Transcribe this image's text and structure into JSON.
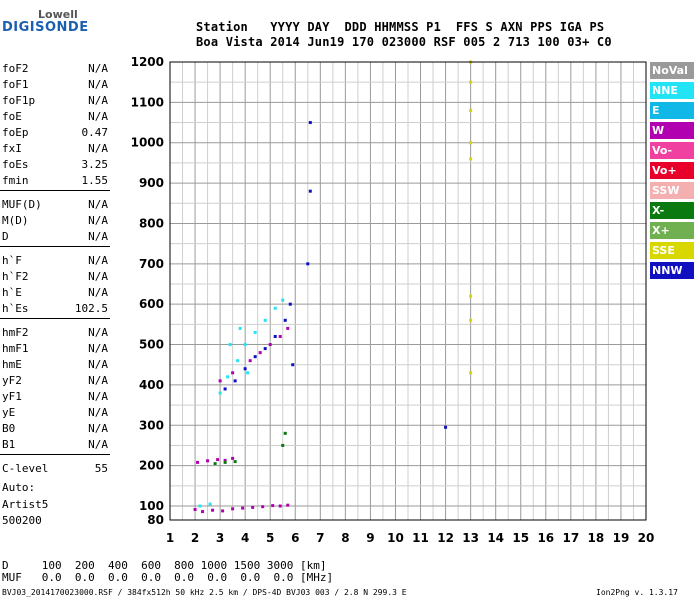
{
  "logo": {
    "line1": "Lowell",
    "line2": "DIGISONDE"
  },
  "header": {
    "line1": "Station   YYYY DAY  DDD HHMMSS P1  FFS S AXN PPS IGA PS",
    "line2": "Boa Vista 2014 Jun19 170 023000 RSF 005 2 713 100 03+ C0"
  },
  "parameters": [
    {
      "name": "foF2",
      "value": "N/A"
    },
    {
      "name": "foF1",
      "value": "N/A"
    },
    {
      "name": "foF1p",
      "value": "N/A"
    },
    {
      "name": "foE",
      "value": "N/A"
    },
    {
      "name": "foEp",
      "value": "0.47"
    },
    {
      "name": "fxI",
      "value": "N/A"
    },
    {
      "name": "foEs",
      "value": "3.25"
    },
    {
      "name": "fmin",
      "value": "1.55"
    },
    {
      "name": "MUF(D)",
      "value": "N/A"
    },
    {
      "name": "M(D)",
      "value": "N/A"
    },
    {
      "name": "D",
      "value": "N/A"
    },
    {
      "name": "h`F",
      "value": "N/A"
    },
    {
      "name": "h`F2",
      "value": "N/A"
    },
    {
      "name": "h`E",
      "value": "N/A"
    },
    {
      "name": "h`Es",
      "value": "102.5"
    },
    {
      "name": "hmF2",
      "value": "N/A"
    },
    {
      "name": "hmF1",
      "value": "N/A"
    },
    {
      "name": "hmE",
      "value": "N/A"
    },
    {
      "name": "yF2",
      "value": "N/A"
    },
    {
      "name": "yF1",
      "value": "N/A"
    },
    {
      "name": "yE",
      "value": "N/A"
    },
    {
      "name": "B0",
      "value": "N/A"
    },
    {
      "name": "B1",
      "value": "N/A"
    },
    {
      "name": "C-level",
      "value": "55"
    }
  ],
  "auto": {
    "line1": "Auto:",
    "line2": "Artist5",
    "line3": "500200"
  },
  "footer": {
    "d_row": "D     100  200  400  600  800 1000 1500 3000 [km]",
    "muf_row": "MUF   0.0  0.0  0.0  0.0  0.0  0.0  0.0  0.0 [MHz]",
    "file_info": "BVJ03_2014170023000.RSF / 384fx512h 50 kHz 2.5 km / DPS-4D BVJ03 003 / 2.8 N 299.3 E",
    "version": "Ion2Png v. 1.3.17"
  },
  "legend": [
    {
      "label": "NoVal",
      "color": "#9a9a9a"
    },
    {
      "label": "NNE",
      "color": "#22e4f4"
    },
    {
      "label": "E",
      "color": "#10b8e8"
    },
    {
      "label": "W",
      "color": "#b000b0"
    },
    {
      "label": "Vo-",
      "color": "#f040a0"
    },
    {
      "label": "Vo+",
      "color": "#e8002a"
    },
    {
      "label": "SSW",
      "color": "#f4b0b0"
    },
    {
      "label": "X-",
      "color": "#0a7a10"
    },
    {
      "label": "X+",
      "color": "#70b050"
    },
    {
      "label": "SSE",
      "color": "#d8d800"
    },
    {
      "label": "NNW",
      "color": "#1010c0"
    }
  ],
  "chart_data": {
    "type": "scatter",
    "xlabel": "",
    "ylabel": "",
    "xlim": [
      1,
      20
    ],
    "ylim": [
      80,
      1200
    ],
    "x_ticks": [
      1,
      2,
      3,
      4,
      5,
      6,
      7,
      8,
      9,
      10,
      11,
      12,
      13,
      14,
      15,
      16,
      17,
      18,
      19,
      20
    ],
    "y_ticks": [
      80,
      100,
      200,
      300,
      400,
      500,
      600,
      700,
      800,
      900,
      1000,
      1100,
      1200
    ],
    "grid": true,
    "series": [
      {
        "name": "W",
        "color": "#b000b0",
        "points": [
          [
            2.0,
            95
          ],
          [
            2.3,
            92
          ],
          [
            2.7,
            94
          ],
          [
            3.1,
            93
          ],
          [
            3.5,
            96
          ],
          [
            3.9,
            97
          ],
          [
            4.3,
            98
          ],
          [
            4.7,
            99
          ],
          [
            5.1,
            101
          ],
          [
            5.4,
            100
          ],
          [
            5.7,
            102
          ],
          [
            2.1,
            208
          ],
          [
            2.5,
            212
          ],
          [
            2.9,
            215
          ],
          [
            3.2,
            213
          ],
          [
            3.5,
            218
          ],
          [
            3.0,
            410
          ],
          [
            3.5,
            430
          ],
          [
            4.2,
            460
          ],
          [
            4.6,
            480
          ],
          [
            5.0,
            500
          ],
          [
            5.4,
            520
          ],
          [
            5.7,
            540
          ]
        ]
      },
      {
        "name": "NNE",
        "color": "#22e4f4",
        "points": [
          [
            2.2,
            100
          ],
          [
            2.6,
            105
          ],
          [
            3.0,
            380
          ],
          [
            3.3,
            420
          ],
          [
            3.7,
            460
          ],
          [
            4.0,
            500
          ],
          [
            4.4,
            530
          ],
          [
            4.8,
            560
          ],
          [
            5.2,
            590
          ],
          [
            5.5,
            610
          ],
          [
            3.4,
            500
          ],
          [
            3.8,
            540
          ],
          [
            4.1,
            430
          ]
        ]
      },
      {
        "name": "NNW",
        "color": "#1010c0",
        "points": [
          [
            3.2,
            390
          ],
          [
            3.6,
            410
          ],
          [
            4.0,
            440
          ],
          [
            4.4,
            470
          ],
          [
            4.8,
            490
          ],
          [
            5.2,
            520
          ],
          [
            5.6,
            560
          ],
          [
            5.8,
            600
          ],
          [
            5.9,
            450
          ],
          [
            6.5,
            700
          ],
          [
            6.6,
            1050
          ],
          [
            6.6,
            880
          ],
          [
            12.0,
            295
          ]
        ]
      },
      {
        "name": "X-",
        "color": "#0a7a10",
        "points": [
          [
            2.8,
            205
          ],
          [
            3.2,
            208
          ],
          [
            3.6,
            210
          ],
          [
            5.5,
            250
          ],
          [
            5.6,
            280
          ]
        ]
      },
      {
        "name": "SSE",
        "color": "#d8d800",
        "points": [
          [
            13.0,
            1200
          ],
          [
            13.0,
            1150
          ],
          [
            13.0,
            1080
          ],
          [
            13.0,
            1000
          ],
          [
            13.0,
            960
          ],
          [
            13.0,
            620
          ],
          [
            13.0,
            560
          ],
          [
            13.0,
            430
          ]
        ]
      }
    ]
  }
}
